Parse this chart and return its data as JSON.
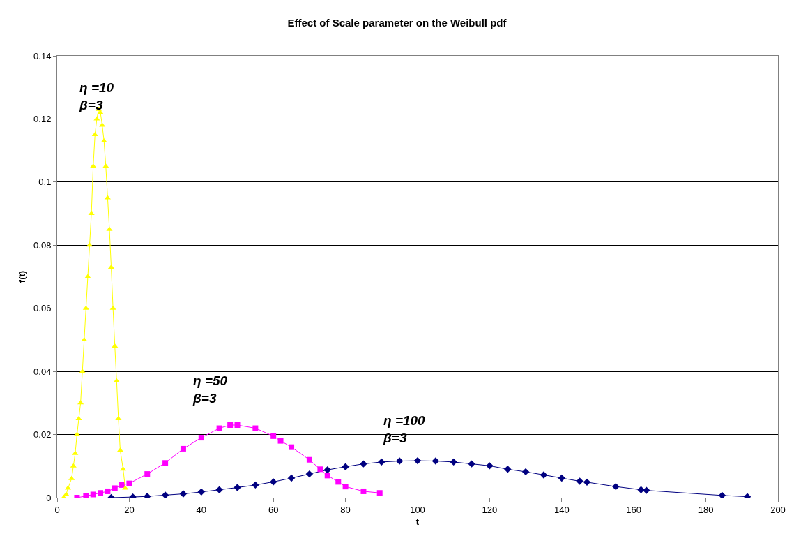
{
  "chart_data": {
    "type": "line",
    "title": "Effect of Scale parameter on the Weibull pdf",
    "xlabel": "t",
    "ylabel": "f(t)",
    "xlim": [
      0,
      200
    ],
    "xticks": [
      0,
      20,
      40,
      60,
      80,
      100,
      120,
      140,
      160,
      180,
      200
    ],
    "ylim": [
      0,
      0.14
    ],
    "yticks": [
      0,
      0.02,
      0.04,
      0.06,
      0.08,
      0.1,
      0.12,
      0.14
    ],
    "grid": "y",
    "line_style": "solid",
    "annotations": [
      "η =100\nβ=3",
      "η =50\nβ=3",
      "η =10\nβ=3"
    ],
    "series": [
      {
        "color": "#000080",
        "marker": "diamond",
        "x": [
          15,
          21,
          25,
          30,
          35,
          40,
          45,
          50,
          55,
          60,
          65,
          70,
          75,
          80,
          85,
          90,
          95,
          100,
          105,
          110,
          115,
          120,
          125,
          130,
          135,
          140,
          145,
          147,
          155,
          162,
          163.5,
          184.5,
          191.5
        ],
        "values": [
          0,
          0.0002,
          0.0004,
          0.0008,
          0.0012,
          0.0018,
          0.0025,
          0.0032,
          0.004,
          0.005,
          0.0062,
          0.0075,
          0.0088,
          0.0098,
          0.0107,
          0.0113,
          0.0116,
          0.0117,
          0.0116,
          0.0113,
          0.0107,
          0.0101,
          0.009,
          0.0082,
          0.0072,
          0.0062,
          0.0052,
          0.0049,
          0.0035,
          0.0025,
          0.0023,
          0.0007,
          0.0003
        ]
      },
      {
        "color": "#ff00ff",
        "marker": "square",
        "x": [
          5.5,
          8,
          10,
          12,
          14,
          16,
          18,
          20,
          25,
          30,
          35,
          40,
          45,
          48,
          50,
          55,
          60,
          62,
          65,
          70,
          73,
          75,
          78,
          80,
          85,
          89.5
        ],
        "values": [
          0,
          0.0005,
          0.001,
          0.0015,
          0.002,
          0.003,
          0.004,
          0.0045,
          0.0075,
          0.011,
          0.0155,
          0.019,
          0.022,
          0.023,
          0.023,
          0.022,
          0.0195,
          0.018,
          0.016,
          0.012,
          0.009,
          0.007,
          0.005,
          0.0035,
          0.002,
          0.0015
        ]
      },
      {
        "color": "#ffff00",
        "marker": "triangle",
        "x": [
          1.8,
          2.5,
          3,
          4,
          4.5,
          5,
          5.5,
          6,
          6.5,
          7,
          7.5,
          8,
          8.5,
          9,
          9.5,
          10,
          10.5,
          11,
          11.5,
          12,
          12.5,
          13,
          13.5,
          14,
          14.5,
          15,
          15.5,
          16,
          16.5,
          17,
          17.5,
          18.3,
          18.9
        ],
        "values": [
          0,
          0.001,
          0.003,
          0.006,
          0.01,
          0.014,
          0.02,
          0.025,
          0.03,
          0.04,
          0.05,
          0.06,
          0.07,
          0.08,
          0.09,
          0.105,
          0.115,
          0.12,
          0.123,
          0.122,
          0.118,
          0.113,
          0.105,
          0.095,
          0.085,
          0.073,
          0.06,
          0.048,
          0.037,
          0.025,
          0.015,
          0.009,
          0.003
        ]
      }
    ]
  }
}
